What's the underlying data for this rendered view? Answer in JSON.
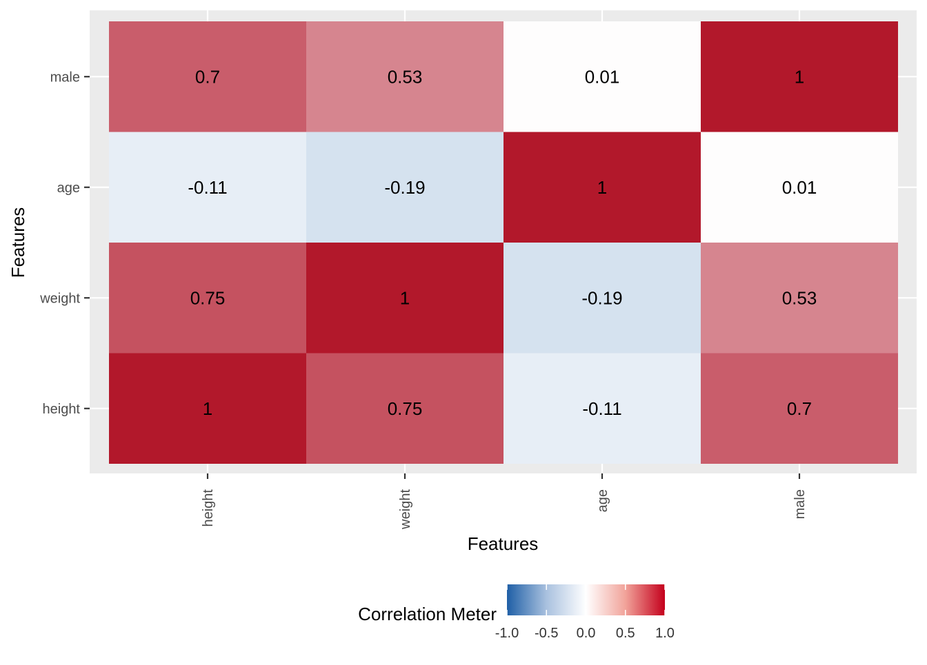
{
  "chart_data": {
    "type": "heatmap",
    "x_categories": [
      "height",
      "weight",
      "age",
      "male"
    ],
    "y_categories": [
      "height",
      "weight",
      "age",
      "male"
    ],
    "values": [
      [
        1,
        0.75,
        -0.11,
        0.7
      ],
      [
        0.75,
        1,
        -0.19,
        0.53
      ],
      [
        -0.11,
        -0.19,
        1,
        0.01
      ],
      [
        0.7,
        0.53,
        0.01,
        1
      ]
    ],
    "cell_labels": [
      [
        "1",
        "0.75",
        "-0.11",
        "0.7"
      ],
      [
        "0.75",
        "1",
        "-0.19",
        "0.53"
      ],
      [
        "-0.11",
        "-0.19",
        "1",
        "0.01"
      ],
      [
        "0.7",
        "0.53",
        "0.01",
        "1"
      ]
    ],
    "xlabel": "Features",
    "ylabel": "Features",
    "legend": {
      "title": "Correlation Meter",
      "position": "bottom",
      "ticks": [
        "-1.0",
        "-0.5",
        "0.0",
        "0.5",
        "1.0"
      ],
      "tick_values": [
        -1,
        -0.5,
        0,
        0.5,
        1
      ],
      "limits": [
        -1,
        1
      ]
    },
    "colors": {
      "low": "#2166ac",
      "mid": "#ffffff",
      "high": "#b2182b",
      "panel_background": "#ebebeb",
      "grid": "#ffffff"
    },
    "grid": true
  }
}
